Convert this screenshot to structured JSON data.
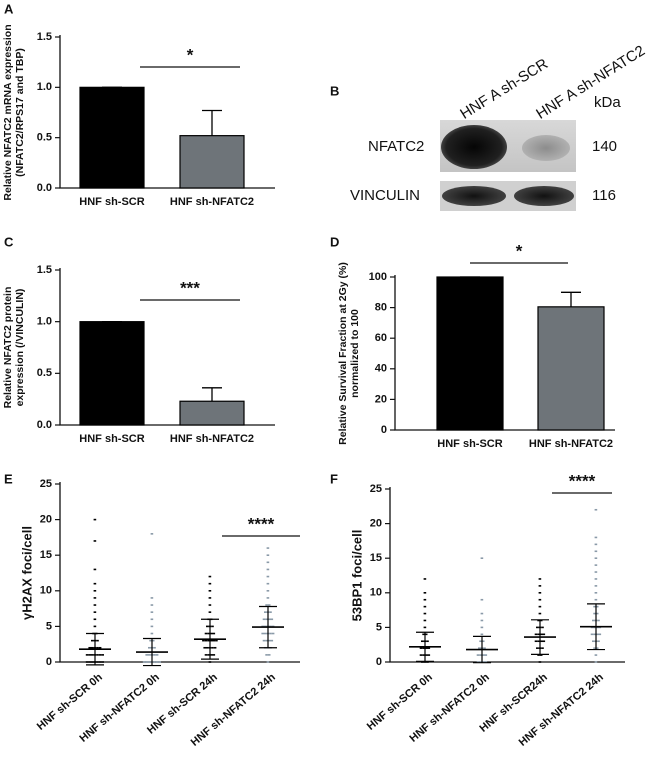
{
  "chart_data": [
    {
      "type": "bar",
      "panel": "A",
      "y_label": [
        "Relative NFATC2 mRNA expression",
        "(NFATC2/RPS17 and TBP)"
      ],
      "categories": [
        "HNF sh-SCR",
        "HNF sh-NFATC2"
      ],
      "values": [
        1.0,
        0.52
      ],
      "errors": [
        0,
        0.25
      ],
      "colors": [
        "#000000",
        "#6e7479"
      ],
      "ylim": [
        0,
        1.5
      ],
      "yticks": [
        {
          "value": 0,
          "label": "0.0"
        },
        0.5,
        {
          "value": 1,
          "label": "1.0"
        },
        1.5
      ],
      "significance": "*"
    },
    {
      "type": "bar",
      "panel": "C",
      "y_label": [
        "Relative NFATC2 protein",
        "expression (/VINCULIN)"
      ],
      "categories": [
        "HNF sh-SCR",
        "HNF sh-NFATC2"
      ],
      "values": [
        1.0,
        0.23
      ],
      "errors": [
        0,
        0.13
      ],
      "colors": [
        "#000000",
        "#6e7479"
      ],
      "ylim": [
        0,
        1.5
      ],
      "yticks": [
        {
          "value": 0,
          "label": "0.0"
        },
        0.5,
        {
          "value": 1,
          "label": "1.0"
        },
        1.5
      ],
      "significance": "***"
    },
    {
      "type": "bar",
      "panel": "D",
      "y_label": [
        "Relative Survival Fraction at 2Gy (%)",
        "normalized to 100"
      ],
      "categories": [
        "HNF sh-SCR",
        "HNF sh-NFATC2"
      ],
      "values": [
        100,
        80.5
      ],
      "errors": [
        0,
        9.5
      ],
      "colors": [
        "#000000",
        "#6e7479"
      ],
      "ylim": [
        0,
        100
      ],
      "yticks": [
        0,
        20,
        40,
        60,
        80,
        100
      ],
      "significance": "*"
    },
    {
      "type": "dot",
      "panel": "E",
      "y_label": [
        "γH2AX foci/cell"
      ],
      "categories": [
        "HNF sh-SCR 0h",
        "HNF sh-NFATC2 0h",
        "HNF sh-SCR 24h",
        "HNF sh-NFATC2 24h"
      ],
      "colors": [
        "#000000",
        "#8a9aa8",
        "#000000",
        "#8a9aa8"
      ],
      "means": [
        1.8,
        1.4,
        3.2,
        4.9
      ],
      "sd": [
        2.2,
        1.9,
        2.8,
        2.9
      ],
      "points": [
        [
          0,
          0,
          0,
          0,
          0,
          0,
          0,
          1,
          1,
          1,
          1,
          1,
          1,
          1,
          2,
          2,
          2,
          2,
          2,
          3,
          3,
          3,
          4,
          4,
          5,
          6,
          7,
          8,
          9,
          10,
          11,
          13,
          17,
          20
        ],
        [
          0,
          0,
          0,
          0,
          0,
          0,
          0,
          1,
          1,
          1,
          1,
          1,
          2,
          2,
          2,
          3,
          3,
          4,
          5,
          6,
          7,
          8,
          9,
          18
        ],
        [
          0,
          1,
          1,
          1,
          1,
          2,
          2,
          2,
          2,
          2,
          3,
          3,
          3,
          3,
          3,
          3,
          4,
          4,
          4,
          4,
          5,
          5,
          5,
          6,
          6,
          7,
          8,
          9,
          10,
          11,
          12
        ],
        [
          0,
          1,
          1,
          2,
          2,
          2,
          3,
          3,
          3,
          3,
          4,
          4,
          4,
          4,
          4,
          5,
          5,
          5,
          5,
          5,
          6,
          6,
          6,
          6,
          7,
          7,
          7,
          8,
          8,
          9,
          10,
          11,
          12,
          13,
          14,
          15,
          16
        ]
      ],
      "ylim": [
        0,
        25
      ],
      "yticks": [
        0,
        5,
        10,
        15,
        20,
        25
      ],
      "significance": "****"
    },
    {
      "type": "dot",
      "panel": "F",
      "y_label": [
        "53BP1 foci/cell"
      ],
      "categories": [
        "HNF sh-SCR 0h",
        "HNF sh-NFATC2 0h",
        "HNF sh-SCR24h",
        "HNF sh-NFATC2 24h"
      ],
      "colors": [
        "#000000",
        "#8a9aa8",
        "#000000",
        "#8a9aa8"
      ],
      "means": [
        2.2,
        1.8,
        3.6,
        5.1
      ],
      "sd": [
        2.1,
        1.9,
        2.5,
        3.3
      ],
      "points": [
        [
          0,
          0,
          0,
          1,
          1,
          1,
          1,
          2,
          2,
          2,
          2,
          3,
          3,
          3,
          4,
          4,
          5,
          6,
          7,
          8,
          9,
          10,
          12
        ],
        [
          0,
          0,
          0,
          0,
          1,
          1,
          1,
          1,
          2,
          2,
          2,
          3,
          3,
          4,
          5,
          6,
          7,
          9,
          15
        ],
        [
          0,
          1,
          1,
          2,
          2,
          2,
          3,
          3,
          3,
          3,
          4,
          4,
          4,
          4,
          5,
          5,
          5,
          6,
          6,
          7,
          8,
          9,
          10,
          11,
          12
        ],
        [
          0,
          1,
          2,
          2,
          3,
          3,
          3,
          4,
          4,
          4,
          4,
          5,
          5,
          5,
          5,
          6,
          6,
          6,
          7,
          7,
          8,
          8,
          9,
          10,
          11,
          12,
          13,
          14,
          15,
          16,
          17,
          18,
          22
        ]
      ],
      "ylim": [
        0,
        25
      ],
      "yticks": [
        0,
        5,
        10,
        15,
        20,
        25
      ],
      "significance": "****"
    }
  ],
  "blot": {
    "panel": "B",
    "lanes": [
      "HNF A sh-SCR",
      "HNF A sh-NFATC2"
    ],
    "unit": "kDa",
    "rows": [
      {
        "name": "NFATC2",
        "kda": "140"
      },
      {
        "name": "VINCULIN",
        "kda": "116"
      }
    ]
  }
}
